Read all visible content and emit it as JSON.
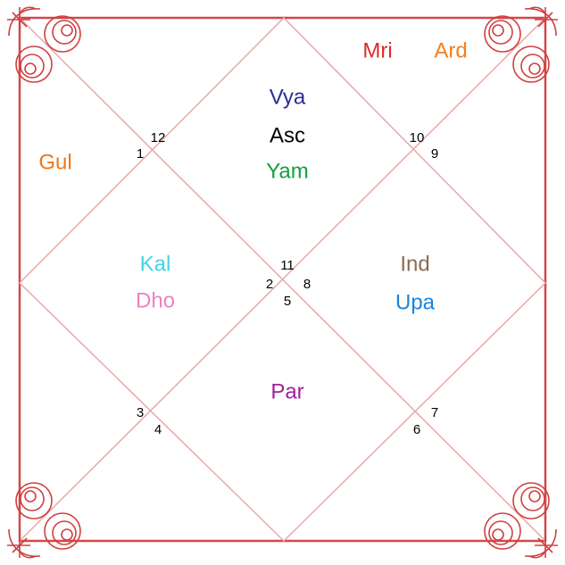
{
  "houses": [
    {
      "number": "12"
    },
    {
      "number": "1"
    },
    {
      "number": "10"
    },
    {
      "number": "9"
    },
    {
      "number": "11"
    },
    {
      "number": "2"
    },
    {
      "number": "8"
    },
    {
      "number": "5"
    },
    {
      "number": "3"
    },
    {
      "number": "4"
    },
    {
      "number": "7"
    },
    {
      "number": "6"
    }
  ],
  "planets": [
    {
      "label": "Mri",
      "color": "#e02828"
    },
    {
      "label": "Ard",
      "color": "#f08020"
    },
    {
      "label": "Vya",
      "color": "#2c2c98"
    },
    {
      "label": "Asc",
      "color": "#000000"
    },
    {
      "label": "Yam",
      "color": "#14a03c"
    },
    {
      "label": "Gul",
      "color": "#f07818"
    },
    {
      "label": "Kal",
      "color": "#40d4e8"
    },
    {
      "label": "Dho",
      "color": "#f080c0"
    },
    {
      "label": "Ind",
      "color": "#8c6a52"
    },
    {
      "label": "Upa",
      "color": "#1884e0"
    },
    {
      "label": "Par",
      "color": "#a020a0"
    }
  ]
}
